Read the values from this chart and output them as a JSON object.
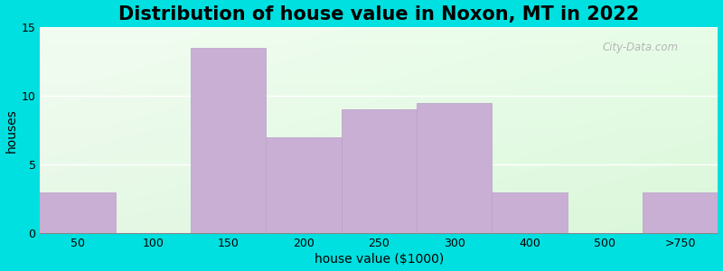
{
  "title": "Distribution of house value in Noxon, MT in 2022",
  "xlabel": "house value ($1000)",
  "ylabel": "houses",
  "bin_labels": [
    "50",
    "100",
    "150",
    "200",
    "250",
    "300",
    "400",
    "500",
    ">750"
  ],
  "values": [
    3,
    0,
    13.5,
    7,
    9,
    9.5,
    3,
    0,
    3
  ],
  "bar_color": "#c9afd4",
  "bar_edgecolor": "#b8a0c8",
  "ylim": [
    0,
    15
  ],
  "yticks": [
    0,
    5,
    10,
    15
  ],
  "outer_bg": "#00e0e0",
  "title_fontsize": 15,
  "axis_label_fontsize": 10,
  "tick_fontsize": 9,
  "watermark_text": "City-Data.com"
}
